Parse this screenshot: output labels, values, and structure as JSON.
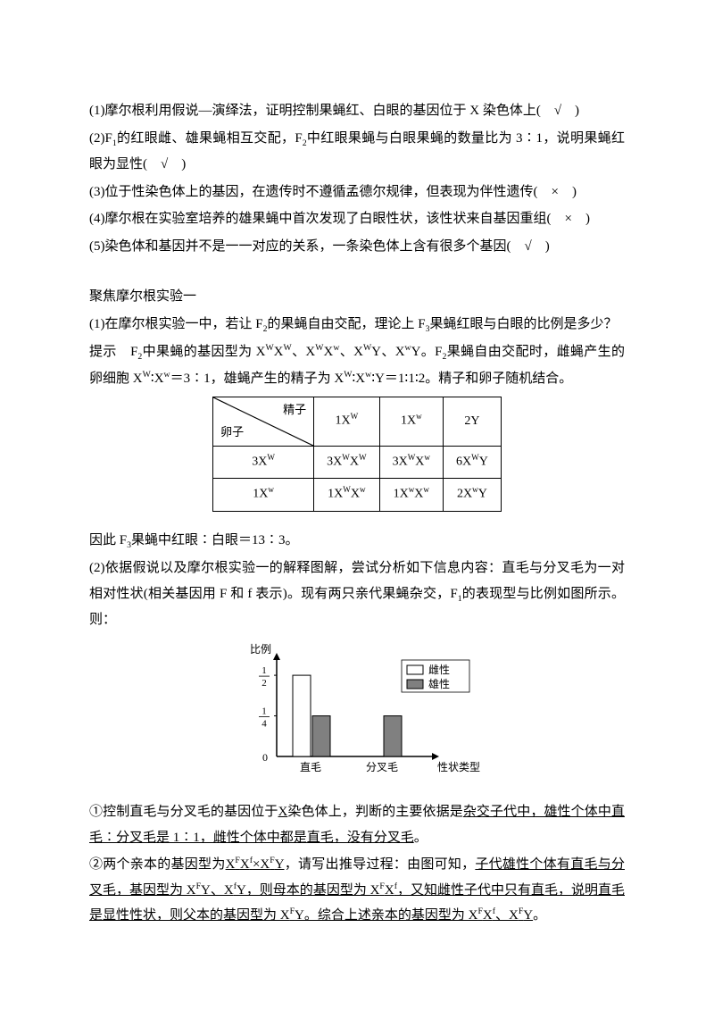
{
  "statements": {
    "s1": "(1)摩尔根利用假说—演绎法，证明控制果蝇红、白眼的基因位于 X 染色体上(　√　)",
    "s2a": "(2)F",
    "s2b": "的红眼雌、雄果蝇相互交配，F",
    "s2c": "中红眼果蝇与白眼果蝇的数量比为 3∶1，说明果蝇红眼为显性(　√　)",
    "s3": "(3)位于性染色体上的基因，在遗传时不遵循孟德尔规律，但表现为伴性遗传(　×　)",
    "s4": "(4)摩尔根在实验室培养的雄果蝇中首次发现了白眼性状，该性状来自基因重组(　×　)",
    "s5": "(5)染色体和基因并不是一一对应的关系，一条染色体上含有很多个基因(　√　)"
  },
  "section_heading": "聚焦摩尔根实验一",
  "q1": {
    "intro_a": "(1)在摩尔根实验一中，若让 F",
    "intro_b": "的果蝇自由交配，理论上 F",
    "intro_c": "果蝇红眼与白眼的比例是多少？",
    "hint_a": "提示　F",
    "hint_b": "中果蝇的基因型为 X",
    "hint_c": "。F",
    "hint_d": "果蝇自由交配时，雌蝇产生的卵细胞 X",
    "hint_e": "＝3∶1，雄蝇产生的精子为 X",
    "hint_f": "∶Y＝1∶1∶2。精子和卵子随机结合。"
  },
  "table": {
    "col_head": "精子",
    "row_head": "卵子",
    "cols": [
      "1X",
      "1X",
      "2Y"
    ],
    "col_sup": [
      "W",
      "w",
      ""
    ],
    "rows": [
      {
        "lead": "3X",
        "lead_sup": "W",
        "cells": [
          "3X",
          "3X",
          "6X"
        ],
        "sup1": [
          "W",
          "W",
          "W"
        ],
        "sup2": [
          "W",
          "w",
          ""
        ],
        "y": [
          "",
          "",
          "Y"
        ]
      },
      {
        "lead": "1X",
        "lead_sup": "w",
        "cells": [
          "1X",
          "1X",
          "2X"
        ],
        "sup1": [
          "W",
          "w",
          "w"
        ],
        "sup2": [
          "w",
          "w",
          ""
        ],
        "y": [
          "",
          "",
          "Y"
        ]
      }
    ]
  },
  "q1_conc_a": "因此 F",
  "q1_conc_b": "果蝇中红眼∶白眼＝13∶3。",
  "q2": {
    "p1_a": "(2)依据假说以及摩尔根实验一的解释图解，尝试分析如下信息内容：直毛与分叉毛为一对相对性状(相关基因用 F 和 f 表示)。现有两只亲代果蝇杂交，F",
    "p1_b": "的表现型与比例如图所示。则：",
    "a1_a": "①控制直毛与分叉毛的基因位于",
    "a1_u1": "X",
    "a1_b": "染色体上，判断的主要依据是",
    "a1_u2": "杂交子代中，雄性个体中直毛∶分叉毛是 1∶1，雌性个体中都是直毛，没有分叉毛",
    "a1_c": "。",
    "a2_a": "②两个亲本的基因型为",
    "a2_u1_pre": "X",
    "a2_u1_mid": "×X",
    "a2_u1_end": "Y",
    "a2_b": "，请写出推导过程：由图可知，",
    "a2_u2_a": "子代雄性个体有直毛与分叉毛，基因型为 X",
    "a2_u2_b": "Y、X",
    "a2_u2_c": "Y，则母本的基因型为 X",
    "a2_u2_d": "，又知雌性子代中只有直毛，说明直毛是显性性状，则父本的基因型为 X",
    "a2_u2_e": "Y。综合上述亲本的基因型为 X",
    "a2_u2_f": "、X",
    "a2_u2_g": "Y",
    "a2_c": "。"
  },
  "chart": {
    "ylabel": "比例",
    "xlabel": "性状类型",
    "cats": [
      "直毛",
      "分叉毛"
    ],
    "legend": [
      "雌性",
      "雄性"
    ],
    "yfracs": [
      "1",
      "2",
      "1",
      "4"
    ],
    "bar_colors": [
      "#ffffff",
      "#808080"
    ],
    "values": [
      [
        0.5,
        0.25
      ],
      [
        0,
        0.25
      ]
    ],
    "ymax": 0.55,
    "axis_color": "#000000",
    "grid_color": "#e0e0e0",
    "font_size": 12
  }
}
